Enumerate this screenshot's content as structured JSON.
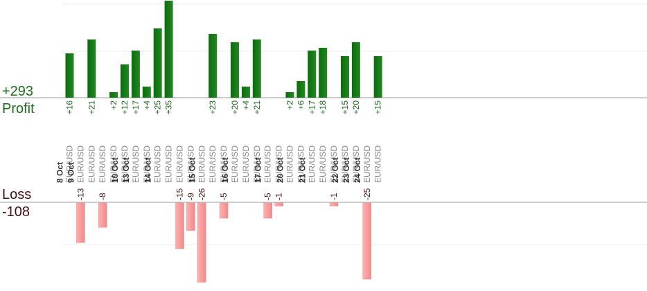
{
  "summary": {
    "profit_total": "+293",
    "profit_label": "Profit",
    "loss_label": "Loss",
    "loss_total": "-108"
  },
  "colors": {
    "profit_bar": "#0f6a0f",
    "profit_bar_light": "#1f8a1f",
    "loss_bar": "#ffb0b0",
    "loss_bar_edge": "#f08a8a",
    "grid": "#eeeeee",
    "axis": "#999999"
  },
  "chart_data": {
    "type": "bar",
    "profit_ylim": [
      0,
      30
    ],
    "loss_ylim": [
      0,
      26
    ],
    "date_groups": [
      {
        "date": "8 Oct",
        "trades": 1
      },
      {
        "date": "9 Oct",
        "trades": 4
      },
      {
        "date": "10 Oct",
        "trades": 1
      },
      {
        "date": "13 Oct",
        "trades": 2
      },
      {
        "date": "14 Oct",
        "trades": 4
      },
      {
        "date": "15 Oct",
        "trades": 3
      },
      {
        "date": "16 Oct",
        "trades": 3
      },
      {
        "date": "17 Oct",
        "trades": 2
      },
      {
        "date": "20 Oct",
        "trades": 2
      },
      {
        "date": "21 Oct",
        "trades": 3
      },
      {
        "date": "22 Oct",
        "trades": 1
      },
      {
        "date": "23 Oct",
        "trades": 1
      },
      {
        "date": "24 Oct",
        "trades": 2
      }
    ],
    "trades": [
      {
        "pair": "EUR/USD",
        "value": 16
      },
      {
        "pair": "EUR/USD",
        "value": -13
      },
      {
        "pair": "EUR/USD",
        "value": 21
      },
      {
        "pair": "EUR/USD",
        "value": -8
      },
      {
        "pair": "EUR/USD",
        "value": 2
      },
      {
        "pair": "EUR/USD",
        "value": 12
      },
      {
        "pair": "EUR/USD",
        "value": 17
      },
      {
        "pair": "EUR/USD",
        "value": 4
      },
      {
        "pair": "EUR/USD",
        "value": 25
      },
      {
        "pair": "EUR/USD",
        "value": 35
      },
      {
        "pair": "EUR/USD",
        "value": -15
      },
      {
        "pair": "EUR/USD",
        "value": -9
      },
      {
        "pair": "EUR/USD",
        "value": -26
      },
      {
        "pair": "EUR/USD",
        "value": 23
      },
      {
        "pair": "EUR/USD",
        "value": -5
      },
      {
        "pair": "EUR/USD",
        "value": 20
      },
      {
        "pair": "EUR/USD",
        "value": 4
      },
      {
        "pair": "EUR/USD",
        "value": 21
      },
      {
        "pair": "EUR/USD",
        "value": -5
      },
      {
        "pair": "EUR/USD",
        "value": -1
      },
      {
        "pair": "EUR/USD",
        "value": 2
      },
      {
        "pair": "EUR/USD",
        "value": 6
      },
      {
        "pair": "EUR/USD",
        "value": 17
      },
      {
        "pair": "EUR/USD",
        "value": 18
      },
      {
        "pair": "EUR/USD",
        "value": -1
      },
      {
        "pair": "EUR/USD",
        "value": 15
      },
      {
        "pair": "EUR/USD",
        "value": 20
      },
      {
        "pair": "EUR/USD",
        "value": -25
      },
      {
        "pair": "EUR/USD",
        "value": 15
      }
    ]
  }
}
